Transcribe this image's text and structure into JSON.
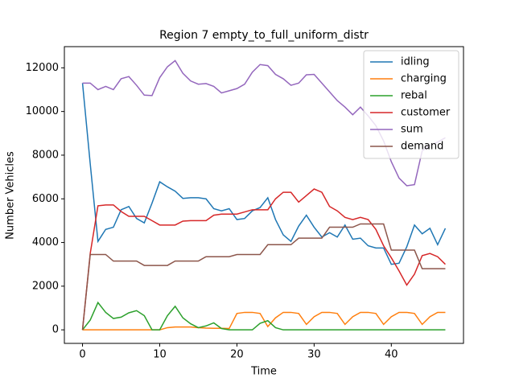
{
  "chart_data": {
    "type": "line",
    "title": "Region 7 empty_to_full_uniform_distr",
    "x_label": "Time",
    "y_label": "Number Vehicles",
    "x": [
      0,
      1,
      2,
      3,
      4,
      5,
      6,
      7,
      8,
      9,
      10,
      11,
      12,
      13,
      14,
      15,
      16,
      17,
      18,
      19,
      20,
      21,
      22,
      23,
      24,
      25,
      26,
      27,
      28,
      29,
      30,
      31,
      32,
      33,
      34,
      35,
      36,
      37,
      38,
      39,
      40,
      41,
      42,
      43,
      44,
      45,
      46,
      47
    ],
    "xlim": [
      -2.35,
      49.35
    ],
    "xticks": [
      0,
      10,
      20,
      30,
      40
    ],
    "ylim": [
      -620,
      12970
    ],
    "yticks": [
      0,
      2000,
      4000,
      6000,
      8000,
      10000,
      12000
    ],
    "legend": "upper right",
    "series": [
      {
        "name": "idling",
        "color": "#1f77b4",
        "values": [
          11300,
          7600,
          4050,
          4600,
          4700,
          5500,
          5650,
          5100,
          4900,
          5800,
          6780,
          6550,
          6350,
          6020,
          6050,
          6050,
          6000,
          5550,
          5450,
          5550,
          5050,
          5100,
          5450,
          5600,
          6050,
          5050,
          4350,
          4050,
          4750,
          5250,
          4700,
          4250,
          4450,
          4250,
          4800,
          4150,
          4200,
          3850,
          3750,
          3750,
          3000,
          3050,
          3800,
          4800,
          4400,
          4650,
          3900,
          4650
        ]
      },
      {
        "name": "charging",
        "color": "#ff7f0e",
        "values": [
          0,
          0,
          0,
          0,
          0,
          0,
          0,
          0,
          0,
          0,
          0,
          100,
          130,
          130,
          130,
          100,
          80,
          70,
          70,
          60,
          750,
          800,
          800,
          750,
          150,
          550,
          800,
          800,
          750,
          250,
          600,
          800,
          800,
          750,
          250,
          600,
          800,
          800,
          750,
          250,
          600,
          800,
          800,
          750,
          250,
          600,
          800,
          800
        ]
      },
      {
        "name": "rebal",
        "color": "#2ca02c",
        "values": [
          0,
          450,
          1250,
          800,
          520,
          580,
          780,
          880,
          650,
          0,
          0,
          650,
          1080,
          550,
          280,
          100,
          180,
          320,
          60,
          0,
          0,
          0,
          0,
          300,
          420,
          100,
          0,
          0,
          0,
          0,
          0,
          0,
          0,
          0,
          0,
          0,
          0,
          0,
          0,
          0,
          0,
          0,
          0,
          0,
          0,
          0,
          0,
          0
        ]
      },
      {
        "name": "customer",
        "color": "#d62728",
        "values": [
          0,
          3500,
          5680,
          5720,
          5720,
          5420,
          5200,
          5200,
          5200,
          5000,
          4800,
          4800,
          4800,
          4980,
          5000,
          5000,
          5000,
          5250,
          5300,
          5300,
          5300,
          5400,
          5500,
          5500,
          5500,
          6000,
          6300,
          6300,
          5850,
          6150,
          6450,
          6300,
          5650,
          5450,
          5150,
          5050,
          5150,
          5050,
          4600,
          3850,
          3300,
          2700,
          2050,
          2550,
          3400,
          3500,
          3350,
          3000
        ]
      },
      {
        "name": "sum",
        "color": "#9467bd",
        "values": [
          11300,
          11300,
          11000,
          11150,
          11000,
          11500,
          11600,
          11200,
          10750,
          10730,
          11550,
          12050,
          12330,
          11750,
          11400,
          11250,
          11280,
          11150,
          10850,
          10950,
          11050,
          11250,
          11800,
          12150,
          12100,
          11700,
          11500,
          11200,
          11300,
          11680,
          11700,
          11300,
          10900,
          10500,
          10200,
          9850,
          10200,
          9800,
          9350,
          8650,
          7700,
          6950,
          6600,
          6650,
          8200,
          8450,
          8600,
          8800
        ]
      },
      {
        "name": "demand",
        "color": "#8c564b",
        "values": [
          0,
          3450,
          3450,
          3450,
          3150,
          3150,
          3150,
          3150,
          2950,
          2950,
          2950,
          2950,
          3150,
          3150,
          3150,
          3150,
          3350,
          3350,
          3350,
          3350,
          3450,
          3450,
          3450,
          3450,
          3900,
          3900,
          3900,
          3900,
          4200,
          4200,
          4200,
          4200,
          4700,
          4700,
          4700,
          4700,
          4850,
          4850,
          4850,
          4850,
          3650,
          3650,
          3650,
          3650,
          2800,
          2800,
          2800,
          2800
        ]
      }
    ]
  }
}
